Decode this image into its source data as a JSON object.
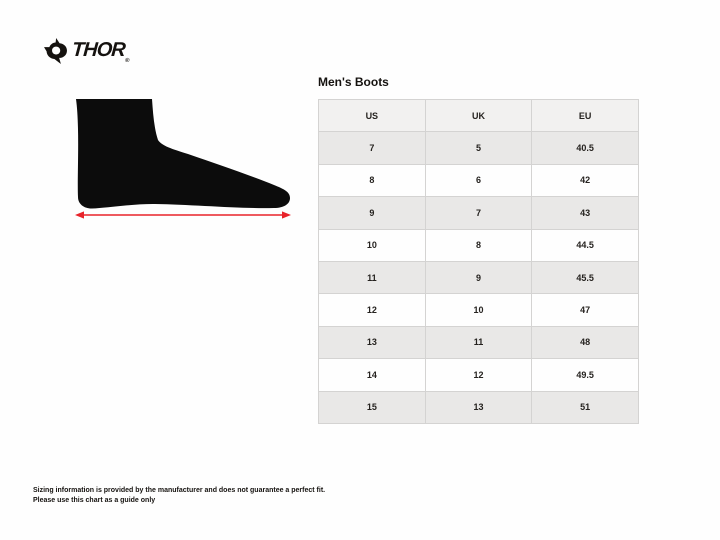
{
  "brand": {
    "name": "THOR",
    "registered_mark": "®",
    "icon": "thor-warrior-emblem"
  },
  "panel": {
    "title": "Men's Boots"
  },
  "figure": {
    "subject": "foot-silhouette-side-view",
    "measurement": "foot-length-arrow"
  },
  "table": {
    "headers": [
      "US",
      "UK",
      "EU"
    ],
    "rows": [
      [
        "7",
        "5",
        "40.5"
      ],
      [
        "8",
        "6",
        "42"
      ],
      [
        "9",
        "7",
        "43"
      ],
      [
        "10",
        "8",
        "44.5"
      ],
      [
        "11",
        "9",
        "45.5"
      ],
      [
        "12",
        "10",
        "47"
      ],
      [
        "13",
        "11",
        "48"
      ],
      [
        "14",
        "12",
        "49.5"
      ],
      [
        "15",
        "13",
        "51"
      ]
    ]
  },
  "footer": {
    "line1": "Sizing information is provided by the manufacturer and does not guarantee a perfect fit.",
    "line2": "Please use this chart as a guide only"
  },
  "colors": {
    "accent_red": "#e8232a",
    "silhouette_black": "#0c0c0c",
    "header_gray": "#f2f1f0",
    "row_gray": "#e9e8e7",
    "border_gray": "#d4d3d2",
    "background": "#fefefe"
  }
}
